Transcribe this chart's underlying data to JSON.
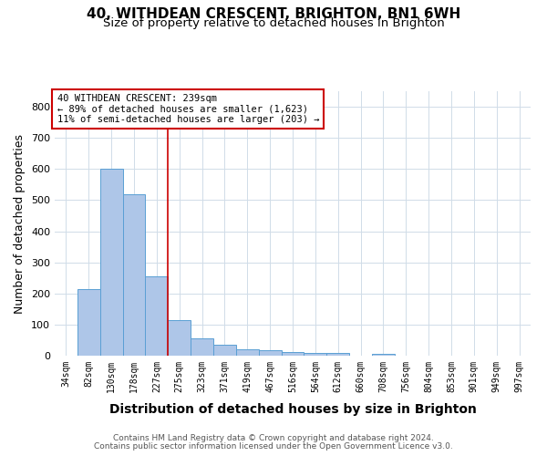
{
  "title": "40, WITHDEAN CRESCENT, BRIGHTON, BN1 6WH",
  "subtitle": "Size of property relative to detached houses in Brighton",
  "xlabel": "Distribution of detached houses by size in Brighton",
  "ylabel": "Number of detached properties",
  "footnote1": "Contains HM Land Registry data © Crown copyright and database right 2024.",
  "footnote2": "Contains public sector information licensed under the Open Government Licence v3.0.",
  "annotation_line1": "40 WITHDEAN CRESCENT: 239sqm",
  "annotation_line2": "← 89% of detached houses are smaller (1,623)",
  "annotation_line3": "11% of semi-detached houses are larger (203) →",
  "bar_labels": [
    "34sqm",
    "82sqm",
    "130sqm",
    "178sqm",
    "227sqm",
    "275sqm",
    "323sqm",
    "371sqm",
    "419sqm",
    "467sqm",
    "516sqm",
    "564sqm",
    "612sqm",
    "660sqm",
    "708sqm",
    "756sqm",
    "804sqm",
    "853sqm",
    "901sqm",
    "949sqm",
    "997sqm"
  ],
  "bar_values": [
    0,
    215,
    600,
    520,
    255,
    115,
    55,
    35,
    20,
    18,
    12,
    8,
    8,
    0,
    7,
    0,
    0,
    0,
    0,
    0,
    0
  ],
  "bar_color": "#aec6e8",
  "bar_edge_color": "#5a9fd4",
  "red_line_x": 4.5,
  "ylim": [
    0,
    850
  ],
  "yticks": [
    0,
    100,
    200,
    300,
    400,
    500,
    600,
    700,
    800
  ],
  "background_color": "#ffffff",
  "grid_color": "#d0dce8",
  "annotation_box_color": "#ffffff",
  "annotation_box_edge": "#cc0000",
  "red_line_color": "#cc0000",
  "title_fontsize": 11,
  "subtitle_fontsize": 9.5,
  "axis_label_fontsize": 9,
  "tick_fontsize": 7,
  "annotation_fontsize": 7.5,
  "footnote_fontsize": 6.5
}
